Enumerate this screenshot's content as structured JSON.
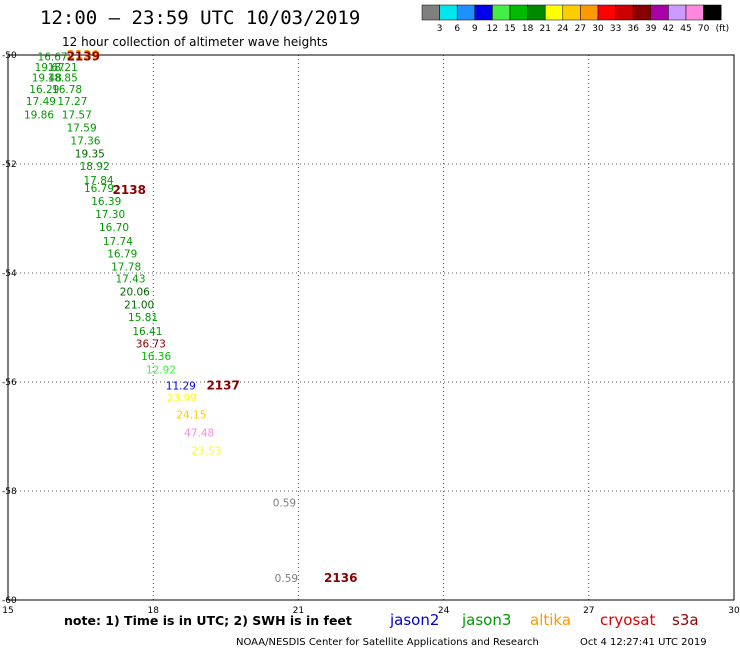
{
  "header": {
    "title": "12:00 – 23:59 UTC 10/03/2019",
    "subtitle": "12 hour collection of altimeter wave heights"
  },
  "colorbar": {
    "labels": [
      "3",
      "6",
      "9",
      "12",
      "15",
      "18",
      "21",
      "24",
      "27",
      "30",
      "33",
      "36",
      "39",
      "42",
      "45",
      "70"
    ],
    "unit": "(ft)",
    "colors": [
      "#7f7f7f",
      "#00e5ee",
      "#1e90ff",
      "#0000ee",
      "#44ee44",
      "#00bb00",
      "#008800",
      "#ffff00",
      "#ffcc00",
      "#ff9900",
      "#ff0000",
      "#cc0000",
      "#880000",
      "#aa00aa",
      "#cc99ff",
      "#ff88dd",
      "#000000"
    ]
  },
  "footer": {
    "note": "note:  1) Time is in UTC;  2) SWH is in feet",
    "credit": "NOAA/NESDIS Center for Satellite Applications and Research",
    "timestamp": "Oct  4 12:27:41 UTC 2019",
    "satellites": [
      {
        "name": "jason2",
        "color": "#0000cc"
      },
      {
        "name": "jason3",
        "color": "#009900"
      },
      {
        "name": "altika",
        "color": "#ff9900"
      },
      {
        "name": "cryosat",
        "color": "#dd0000"
      },
      {
        "name": "s3a",
        "color": "#990000"
      }
    ]
  },
  "chart_data": {
    "type": "scatter",
    "xlim": [
      15,
      30
    ],
    "ylim": [
      -60,
      -50
    ],
    "x_ticks": [
      15,
      18,
      21,
      24,
      27,
      30
    ],
    "y_ticks": [
      -50,
      -52,
      -54,
      -56,
      -58,
      -60
    ],
    "grid": true,
    "points": [
      {
        "x": 15.61,
        "y": -50.03,
        "label": "16.67",
        "color": "#009900"
      },
      {
        "x": 15.55,
        "y": -50.22,
        "label": "19.67",
        "color": "#009900"
      },
      {
        "x": 15.82,
        "y": -50.22,
        "label": "18.21",
        "color": "#009900"
      },
      {
        "x": 15.49,
        "y": -50.41,
        "label": "19.48",
        "color": "#009900"
      },
      {
        "x": 15.82,
        "y": -50.41,
        "label": "18.85",
        "color": "#009900"
      },
      {
        "x": 15.44,
        "y": -50.62,
        "label": "16.29",
        "color": "#009900"
      },
      {
        "x": 15.91,
        "y": -50.62,
        "label": "16.78",
        "color": "#009900"
      },
      {
        "x": 15.37,
        "y": -50.84,
        "label": "17.49",
        "color": "#009900"
      },
      {
        "x": 16.02,
        "y": -50.84,
        "label": "17.27",
        "color": "#009900"
      },
      {
        "x": 15.33,
        "y": -51.09,
        "label": "19.86",
        "color": "#009900"
      },
      {
        "x": 16.11,
        "y": -51.09,
        "label": "17.57",
        "color": "#009900"
      },
      {
        "x": 16.21,
        "y": -51.33,
        "label": "17.59",
        "color": "#009900"
      },
      {
        "x": 16.29,
        "y": -51.57,
        "label": "17.36",
        "color": "#009900"
      },
      {
        "x": 16.38,
        "y": -51.81,
        "label": "19.35",
        "color": "#006600"
      },
      {
        "x": 16.48,
        "y": -52.04,
        "label": "18.92",
        "color": "#009900"
      },
      {
        "x": 16.56,
        "y": -52.29,
        "label": "17.84",
        "color": "#009900"
      },
      {
        "x": 16.57,
        "y": -52.44,
        "label": "16.79",
        "color": "#009900"
      },
      {
        "x": 16.72,
        "y": -52.68,
        "label": "16.39",
        "color": "#009900"
      },
      {
        "x": 16.8,
        "y": -52.92,
        "label": "17.30",
        "color": "#009900"
      },
      {
        "x": 16.88,
        "y": -53.16,
        "label": "16.70",
        "color": "#009900"
      },
      {
        "x": 16.96,
        "y": -53.41,
        "label": "17.74",
        "color": "#009900"
      },
      {
        "x": 17.05,
        "y": -53.64,
        "label": "16.79",
        "color": "#009900"
      },
      {
        "x": 17.13,
        "y": -53.88,
        "label": "17.78",
        "color": "#009900"
      },
      {
        "x": 17.22,
        "y": -54.1,
        "label": "17.43",
        "color": "#009900"
      },
      {
        "x": 17.31,
        "y": -54.34,
        "label": "20.06",
        "color": "#006600"
      },
      {
        "x": 17.4,
        "y": -54.58,
        "label": "21.00",
        "color": "#006600"
      },
      {
        "x": 17.48,
        "y": -54.81,
        "label": "15.81",
        "color": "#009900"
      },
      {
        "x": 17.57,
        "y": -55.06,
        "label": "16.41",
        "color": "#009900"
      },
      {
        "x": 17.64,
        "y": -55.29,
        "label": "36.73",
        "color": "#880000"
      },
      {
        "x": 17.75,
        "y": -55.52,
        "label": "16.36",
        "color": "#00bb00"
      },
      {
        "x": 17.85,
        "y": -55.77,
        "label": "12.92",
        "color": "#44ee44"
      },
      {
        "x": 18.26,
        "y": -56.06,
        "label": "11.29",
        "color": "#0000ee"
      },
      {
        "x": 18.28,
        "y": -56.28,
        "label": "23.99",
        "color": "#ffff00"
      },
      {
        "x": 18.48,
        "y": -56.6,
        "label": "24.15",
        "color": "#ffcc00"
      },
      {
        "x": 18.64,
        "y": -56.93,
        "label": "47.48",
        "color": "#ff88dd"
      },
      {
        "x": 18.79,
        "y": -57.26,
        "label": "23.53",
        "color": "#ffff00"
      },
      {
        "x": 20.47,
        "y": -58.21,
        "label": "0.59",
        "color": "#7f7f7f"
      },
      {
        "x": 20.51,
        "y": -59.6,
        "label": "0.59",
        "color": "#7f7f7f"
      }
    ],
    "orbit_labels": [
      {
        "x": 16.21,
        "y": -50.0,
        "label": "2139",
        "color": "#ff9900"
      },
      {
        "x": 16.21,
        "y": -50.03,
        "label": "2139",
        "color": "#880000"
      },
      {
        "x": 17.16,
        "y": -52.48,
        "label": "2138",
        "color": "#880000"
      },
      {
        "x": 19.1,
        "y": -56.06,
        "label": "2137",
        "color": "#880000"
      },
      {
        "x": 21.53,
        "y": -59.6,
        "label": "2136",
        "color": "#880000"
      }
    ]
  }
}
